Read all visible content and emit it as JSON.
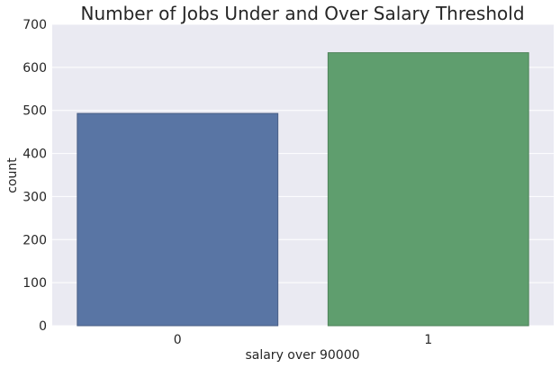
{
  "chart_data": {
    "type": "bar",
    "title": "Number of Jobs Under and Over Salary Threshold",
    "xlabel": "salary over 90000",
    "ylabel": "count",
    "categories": [
      "0",
      "1"
    ],
    "values": [
      493,
      634
    ],
    "ylim": [
      0,
      700
    ],
    "yticks": [
      0,
      100,
      200,
      300,
      400,
      500,
      600,
      700
    ],
    "grid": true,
    "colors": {
      "background": "#eaeaf2",
      "bars": [
        "#5975a4",
        "#5f9e6e"
      ],
      "bar_edges": [
        "#4a5f85",
        "#4e8259"
      ]
    }
  }
}
